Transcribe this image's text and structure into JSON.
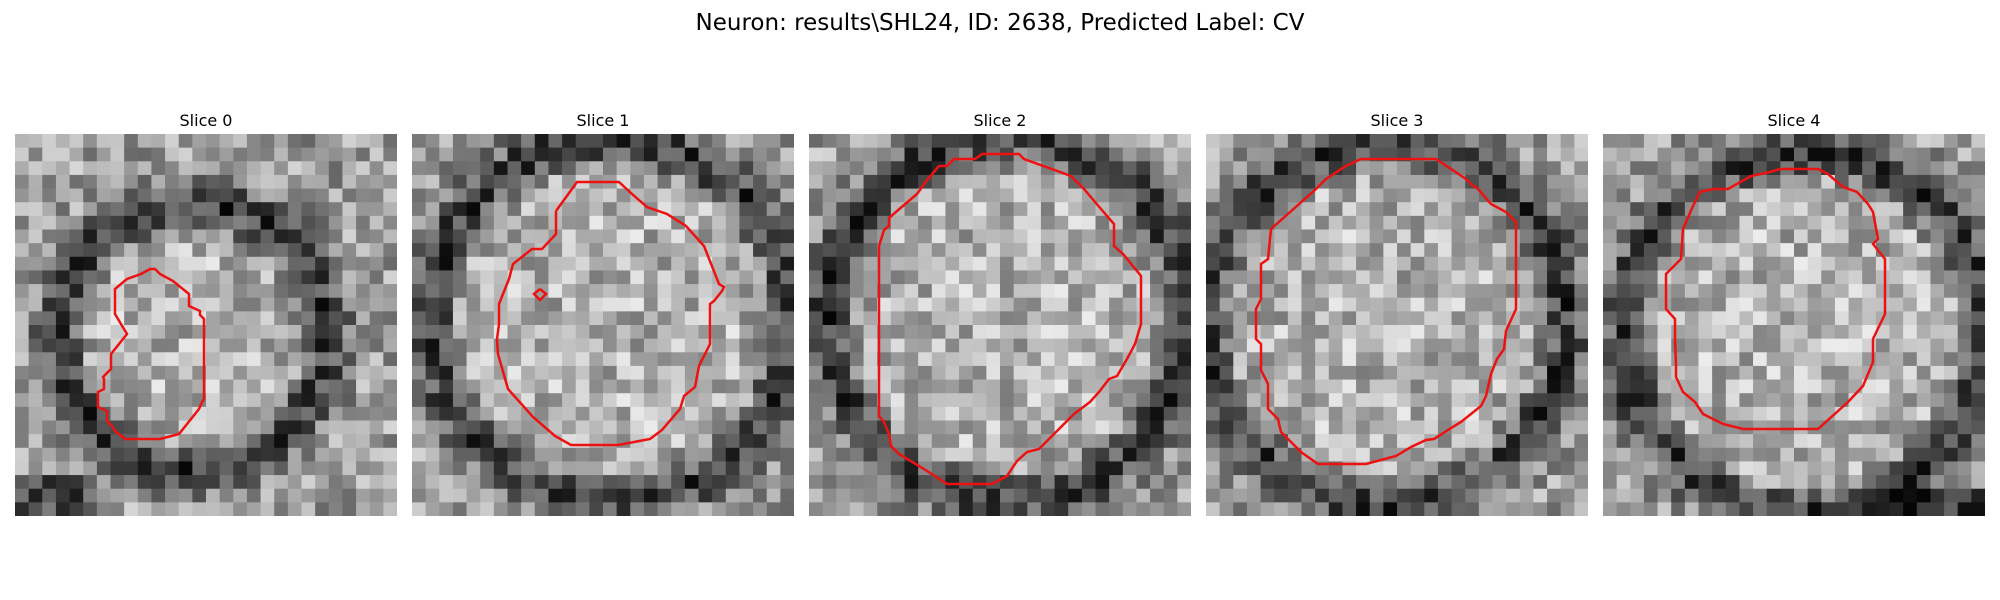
{
  "figure": {
    "title": "Neuron: results\\SHL24, ID: 2638, Predicted Label: CV"
  },
  "panels": [
    {
      "title": "Slice 0",
      "contour_color": "#ee1111",
      "seed": 11
    },
    {
      "title": "Slice 1",
      "contour_color": "#ee1111",
      "seed": 23
    },
    {
      "title": "Slice 2",
      "contour_color": "#ee1111",
      "seed": 37
    },
    {
      "title": "Slice 3",
      "contour_color": "#ee1111",
      "seed": 41
    },
    {
      "title": "Slice 4",
      "contour_color": "#ee1111",
      "seed": 53
    }
  ]
}
